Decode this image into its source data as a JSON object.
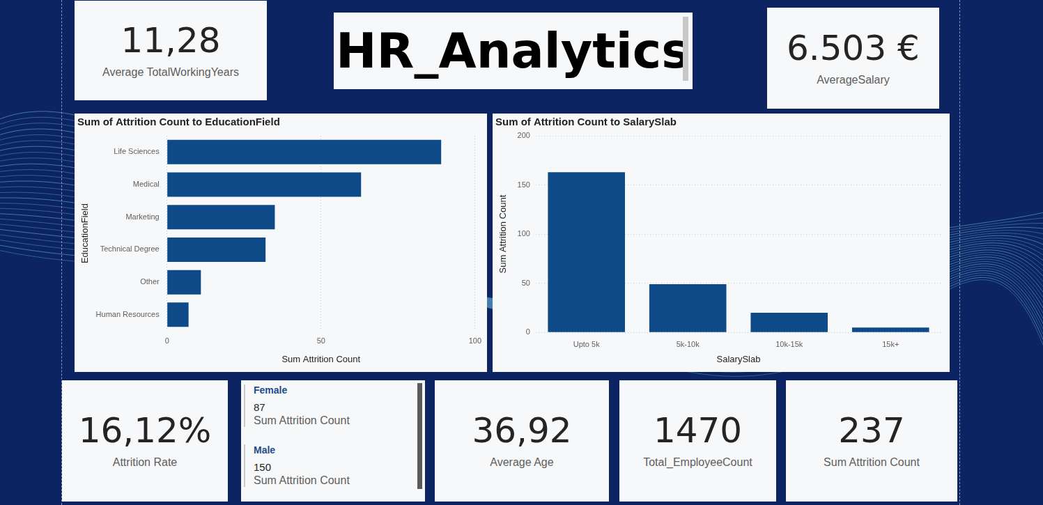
{
  "title": "HR_Analytics",
  "top_cards": [
    {
      "value": "11,28",
      "label": "Average TotalWorkingYears"
    },
    {
      "value": "6.503 €",
      "label": "AverageSalary"
    }
  ],
  "bottom_cards": [
    {
      "value": "16,12%",
      "label": "Attrition Rate"
    },
    {
      "value": "36,92",
      "label": "Average Age"
    },
    {
      "value": "1470",
      "label": "Total_EmployeeCount"
    },
    {
      "value": "237",
      "label": "Sum Attrition Count"
    }
  ],
  "gender_card": [
    {
      "name": "Female",
      "value": 87,
      "label": "Sum Attrition Count"
    },
    {
      "name": "Male",
      "value": 150,
      "label": "Sum Attrition Count"
    }
  ],
  "chart_data": [
    {
      "type": "bar",
      "orientation": "horizontal",
      "title": "Sum of Attrition Count to EducationField",
      "x_label": "Sum Attrition Count",
      "y_label": "EducationField",
      "categories": [
        "Life Sciences",
        "Medical",
        "Marketing",
        "Technical Degree",
        "Other",
        "Human Resources"
      ],
      "values": [
        89,
        63,
        35,
        32,
        11,
        7
      ],
      "color": "#0d4a87",
      "xlim": [
        0,
        100
      ],
      "xticks": [
        0,
        50,
        100
      ],
      "grid": true
    },
    {
      "type": "bar",
      "title": "Sum of Attrition Count to SalarySlab",
      "x_label": "SalarySlab",
      "y_label": "Sum Attrition Count",
      "categories": [
        "Upto 5k",
        "5k-10k",
        "10k-15k",
        "15k+"
      ],
      "values": [
        163,
        49,
        20,
        5
      ],
      "color": "#0d4a87",
      "ylim": [
        0,
        200
      ],
      "yticks": [
        0,
        50,
        100,
        150,
        200
      ],
      "grid": true
    }
  ]
}
